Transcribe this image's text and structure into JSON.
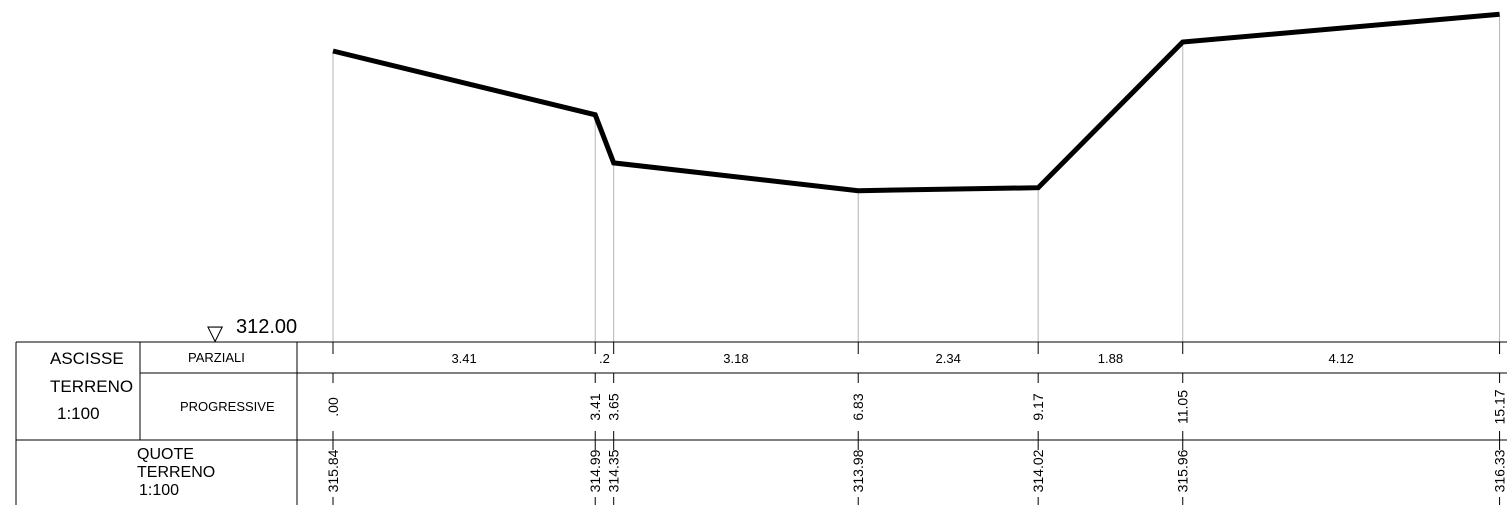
{
  "datum": {
    "symbol": "▽",
    "value": "312.00"
  },
  "table": {
    "group_label": [
      "ASCISSE",
      "TERRENO",
      "1:100"
    ],
    "row1_label": "PARZIALI",
    "row2_label": "PROGRESSIVE",
    "row3_label": [
      "QUOTE",
      "TERRENO",
      "1:100"
    ]
  },
  "chart_data": {
    "type": "line",
    "title": "",
    "xlabel": "",
    "ylabel": "",
    "x": [
      0.0,
      3.41,
      3.65,
      6.83,
      9.17,
      11.05,
      15.17
    ],
    "y": [
      315.84,
      314.99,
      314.35,
      313.98,
      314.02,
      315.96,
      316.33
    ],
    "progressive_labels": [
      ".00",
      "3.41",
      "3.65",
      "6.83",
      "9.17",
      "11.05",
      "15.17"
    ],
    "elevation_labels": [
      "315.84",
      "314.99",
      "314.35",
      "313.98",
      "314.02",
      "315.96",
      "316.33"
    ],
    "partial_labels": [
      "3.41",
      ".2",
      "3.18",
      "2.34",
      "1.88",
      "4.12"
    ],
    "datum_elevation": 312.0,
    "scale": "1:100"
  }
}
